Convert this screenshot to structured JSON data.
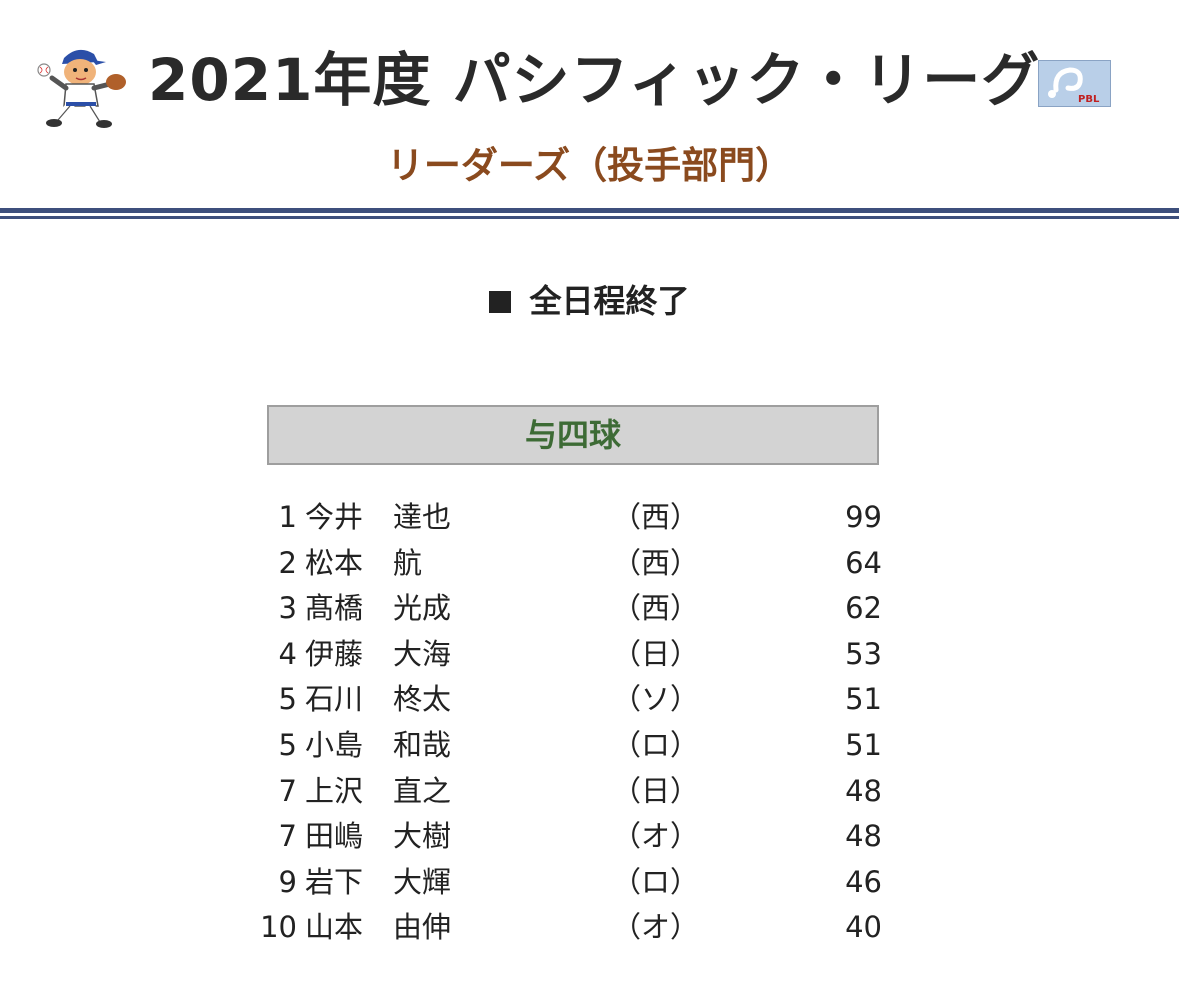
{
  "header": {
    "title": "2021年度 パシフィック・リーグ",
    "subtitle": "リーダーズ（投手部門）",
    "mascot_icon": "baseball-player-mascot",
    "badge_icon": "pbl-logo"
  },
  "status": {
    "text": "全日程終了"
  },
  "category": {
    "label": "与四球"
  },
  "rankings": [
    {
      "rank": "1",
      "surname": "今井",
      "given": "達也",
      "team": "（西）",
      "value": "99"
    },
    {
      "rank": "2",
      "surname": "松本",
      "given": "航",
      "team": "（西）",
      "value": "64"
    },
    {
      "rank": "3",
      "surname": "髙橋",
      "given": "光成",
      "team": "（西）",
      "value": "62"
    },
    {
      "rank": "4",
      "surname": "伊藤",
      "given": "大海",
      "team": "（日）",
      "value": "53"
    },
    {
      "rank": "5",
      "surname": "石川",
      "given": "柊太",
      "team": "（ソ）",
      "value": "51"
    },
    {
      "rank": "5",
      "surname": "小島",
      "given": "和哉",
      "team": "（ロ）",
      "value": "51"
    },
    {
      "rank": "7",
      "surname": "上沢",
      "given": "直之",
      "team": "（日）",
      "value": "48"
    },
    {
      "rank": "7",
      "surname": "田嶋",
      "given": "大樹",
      "team": "（オ）",
      "value": "48"
    },
    {
      "rank": "9",
      "surname": "岩下",
      "given": "大輝",
      "team": "（ロ）",
      "value": "46"
    },
    {
      "rank": "10",
      "surname": "山本",
      "given": "由伸",
      "team": "（オ）",
      "value": "40"
    }
  ],
  "colors": {
    "title": "#2a2a2a",
    "subtitle": "#8a4a1e",
    "divider": "#3d4f7c",
    "category_bg": "#d3d3d3",
    "category_text": "#3d6b35"
  }
}
